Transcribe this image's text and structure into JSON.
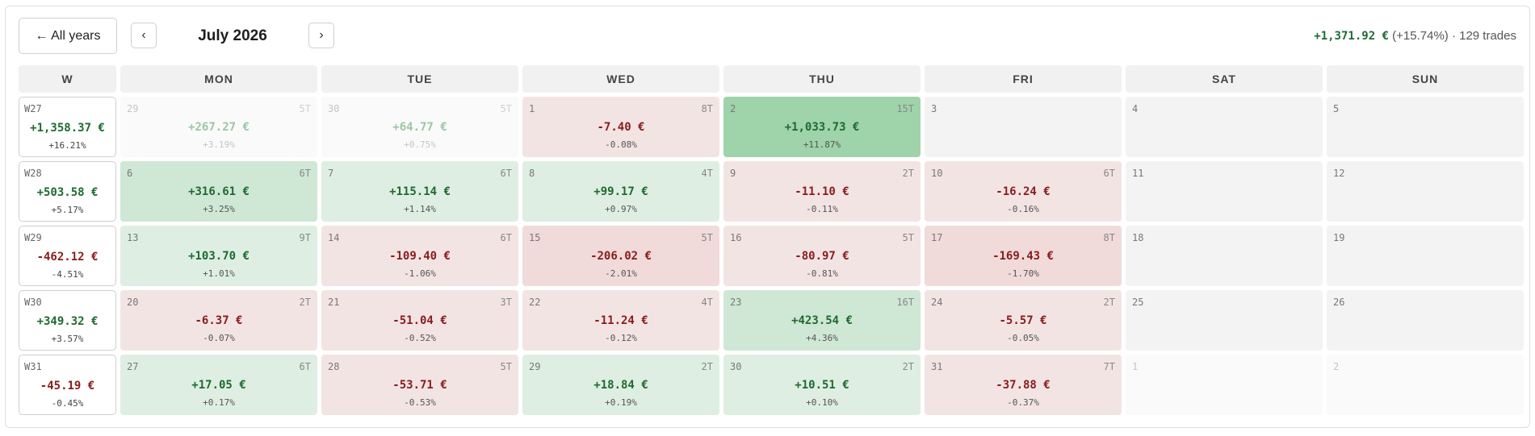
{
  "toolbar": {
    "back_label": "← All years",
    "prev_icon": "‹",
    "next_icon": "›",
    "month_title": "July 2026"
  },
  "summary": {
    "pnl": "+1,371.92 €",
    "rest": " (+15.74%) · 129 trades"
  },
  "headers": [
    "W",
    "MON",
    "TUE",
    "WED",
    "THU",
    "FRI",
    "SAT",
    "SUN"
  ],
  "colors": {
    "profit_text": "#1e6b30",
    "loss_text": "#8a1c1c",
    "profit_strong": "#9fd3aa",
    "profit_light": "#dfeee2",
    "loss_light": "#f3e4e4"
  },
  "weeks": [
    {
      "label": "W27",
      "amount": "+1,358.37 €",
      "pct": "+16.21%",
      "sign": "pos",
      "days": [
        {
          "num": "29",
          "trades": "5T",
          "amount": "+267.27 €",
          "pct": "+3.19%",
          "sign": "pos",
          "tone": "outside"
        },
        {
          "num": "30",
          "trades": "5T",
          "amount": "+64.77 €",
          "pct": "+0.75%",
          "sign": "pos",
          "tone": "outside"
        },
        {
          "num": "1",
          "trades": "8T",
          "amount": "-7.40 €",
          "pct": "-0.08%",
          "sign": "neg",
          "tone": "r1"
        },
        {
          "num": "2",
          "trades": "15T",
          "amount": "+1,033.73 €",
          "pct": "+11.87%",
          "sign": "pos",
          "tone": "g3"
        },
        {
          "num": "3",
          "trades": "",
          "amount": "",
          "pct": "",
          "sign": "",
          "tone": "empty"
        },
        {
          "num": "4",
          "trades": "",
          "amount": "",
          "pct": "",
          "sign": "",
          "tone": "empty"
        },
        {
          "num": "5",
          "trades": "",
          "amount": "",
          "pct": "",
          "sign": "",
          "tone": "empty"
        }
      ]
    },
    {
      "label": "W28",
      "amount": "+503.58 €",
      "pct": "+5.17%",
      "sign": "pos",
      "days": [
        {
          "num": "6",
          "trades": "6T",
          "amount": "+316.61 €",
          "pct": "+3.25%",
          "sign": "pos",
          "tone": "g2"
        },
        {
          "num": "7",
          "trades": "6T",
          "amount": "+115.14 €",
          "pct": "+1.14%",
          "sign": "pos",
          "tone": "g1"
        },
        {
          "num": "8",
          "trades": "4T",
          "amount": "+99.17 €",
          "pct": "+0.97%",
          "sign": "pos",
          "tone": "g1"
        },
        {
          "num": "9",
          "trades": "2T",
          "amount": "-11.10 €",
          "pct": "-0.11%",
          "sign": "neg",
          "tone": "r1"
        },
        {
          "num": "10",
          "trades": "6T",
          "amount": "-16.24 €",
          "pct": "-0.16%",
          "sign": "neg",
          "tone": "r1"
        },
        {
          "num": "11",
          "trades": "",
          "amount": "",
          "pct": "",
          "sign": "",
          "tone": "empty"
        },
        {
          "num": "12",
          "trades": "",
          "amount": "",
          "pct": "",
          "sign": "",
          "tone": "empty"
        }
      ]
    },
    {
      "label": "W29",
      "amount": "-462.12 €",
      "pct": "-4.51%",
      "sign": "neg",
      "days": [
        {
          "num": "13",
          "trades": "9T",
          "amount": "+103.70 €",
          "pct": "+1.01%",
          "sign": "pos",
          "tone": "g1"
        },
        {
          "num": "14",
          "trades": "6T",
          "amount": "-109.40 €",
          "pct": "-1.06%",
          "sign": "neg",
          "tone": "r1"
        },
        {
          "num": "15",
          "trades": "5T",
          "amount": "-206.02 €",
          "pct": "-2.01%",
          "sign": "neg",
          "tone": "r2"
        },
        {
          "num": "16",
          "trades": "5T",
          "amount": "-80.97 €",
          "pct": "-0.81%",
          "sign": "neg",
          "tone": "r1"
        },
        {
          "num": "17",
          "trades": "8T",
          "amount": "-169.43 €",
          "pct": "-1.70%",
          "sign": "neg",
          "tone": "r2"
        },
        {
          "num": "18",
          "trades": "",
          "amount": "",
          "pct": "",
          "sign": "",
          "tone": "empty"
        },
        {
          "num": "19",
          "trades": "",
          "amount": "",
          "pct": "",
          "sign": "",
          "tone": "empty"
        }
      ]
    },
    {
      "label": "W30",
      "amount": "+349.32 €",
      "pct": "+3.57%",
      "sign": "pos",
      "days": [
        {
          "num": "20",
          "trades": "2T",
          "amount": "-6.37 €",
          "pct": "-0.07%",
          "sign": "neg",
          "tone": "r1"
        },
        {
          "num": "21",
          "trades": "3T",
          "amount": "-51.04 €",
          "pct": "-0.52%",
          "sign": "neg",
          "tone": "r1"
        },
        {
          "num": "22",
          "trades": "4T",
          "amount": "-11.24 €",
          "pct": "-0.12%",
          "sign": "neg",
          "tone": "r1"
        },
        {
          "num": "23",
          "trades": "16T",
          "amount": "+423.54 €",
          "pct": "+4.36%",
          "sign": "pos",
          "tone": "g2"
        },
        {
          "num": "24",
          "trades": "2T",
          "amount": "-5.57 €",
          "pct": "-0.05%",
          "sign": "neg",
          "tone": "r1"
        },
        {
          "num": "25",
          "trades": "",
          "amount": "",
          "pct": "",
          "sign": "",
          "tone": "empty"
        },
        {
          "num": "26",
          "trades": "",
          "amount": "",
          "pct": "",
          "sign": "",
          "tone": "empty"
        }
      ]
    },
    {
      "label": "W31",
      "amount": "-45.19 €",
      "pct": "-0.45%",
      "sign": "neg",
      "days": [
        {
          "num": "27",
          "trades": "6T",
          "amount": "+17.05 €",
          "pct": "+0.17%",
          "sign": "pos",
          "tone": "g1"
        },
        {
          "num": "28",
          "trades": "5T",
          "amount": "-53.71 €",
          "pct": "-0.53%",
          "sign": "neg",
          "tone": "r1"
        },
        {
          "num": "29",
          "trades": "2T",
          "amount": "+18.84 €",
          "pct": "+0.19%",
          "sign": "pos",
          "tone": "g1"
        },
        {
          "num": "30",
          "trades": "2T",
          "amount": "+10.51 €",
          "pct": "+0.10%",
          "sign": "pos",
          "tone": "g1"
        },
        {
          "num": "31",
          "trades": "7T",
          "amount": "-37.88 €",
          "pct": "-0.37%",
          "sign": "neg",
          "tone": "r1"
        },
        {
          "num": "1",
          "trades": "",
          "amount": "",
          "pct": "",
          "sign": "",
          "tone": "outside"
        },
        {
          "num": "2",
          "trades": "",
          "amount": "",
          "pct": "",
          "sign": "",
          "tone": "outside"
        }
      ]
    }
  ]
}
